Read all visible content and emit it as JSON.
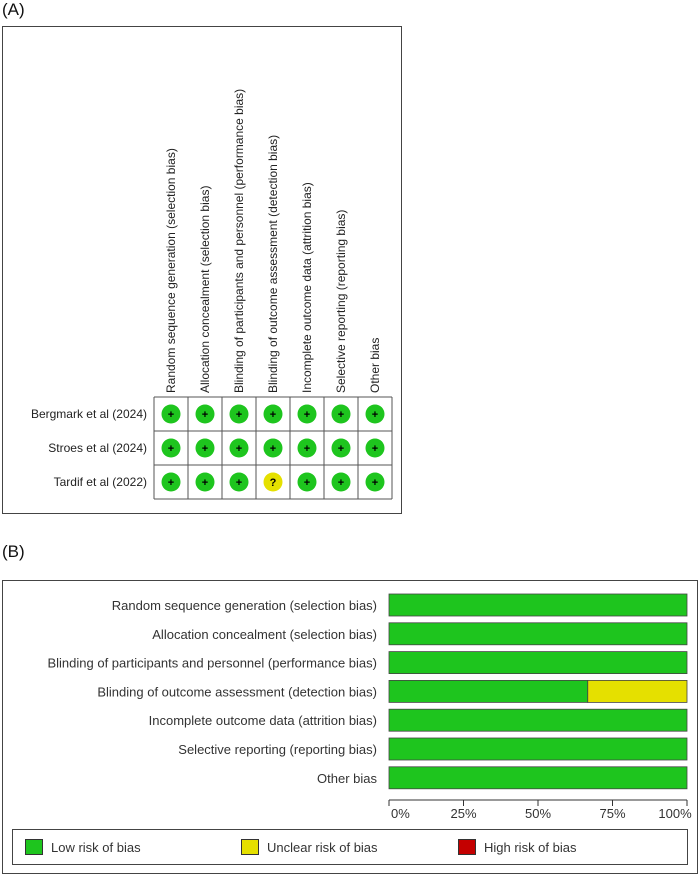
{
  "panels": {
    "a_label": "(A)",
    "b_label": "(B)"
  },
  "colors": {
    "low": "#1ec51e",
    "unclear": "#e5e000",
    "high": "#c40000"
  },
  "chart_data": [
    {
      "type": "table",
      "title": "",
      "domains": [
        "Random sequence generation (selection bias)",
        "Allocation concealment (selection bias)",
        "Blinding of participants and personnel (performance bias)",
        "Blinding of outcome assessment (detection bias)",
        "Incomplete outcome data (attrition bias)",
        "Selective reporting (reporting bias)",
        "Other bias"
      ],
      "studies": [
        {
          "name": "Bergmark et al (2024)",
          "judgements": [
            "+",
            "+",
            "+",
            "+",
            "+",
            "+",
            "+"
          ]
        },
        {
          "name": "Stroes et al (2024)",
          "judgements": [
            "+",
            "+",
            "+",
            "+",
            "+",
            "+",
            "+"
          ]
        },
        {
          "name": "Tardif et al (2022)",
          "judgements": [
            "+",
            "+",
            "+",
            "?",
            "+",
            "+",
            "+"
          ]
        }
      ]
    },
    {
      "type": "bar",
      "title": "",
      "categories": [
        "Random sequence generation (selection bias)",
        "Allocation concealment (selection bias)",
        "Blinding of participants and personnel (performance bias)",
        "Blinding of outcome assessment (detection bias)",
        "Incomplete outcome data (attrition bias)",
        "Selective reporting (reporting bias)",
        "Other bias"
      ],
      "series": [
        {
          "name": "Low risk of bias",
          "values": [
            100,
            100,
            100,
            66.7,
            100,
            100,
            100
          ]
        },
        {
          "name": "Unclear risk of bias",
          "values": [
            0,
            0,
            0,
            33.3,
            0,
            0,
            0
          ]
        },
        {
          "name": "High risk of bias",
          "values": [
            0,
            0,
            0,
            0,
            0,
            0,
            0
          ]
        }
      ],
      "xlim": [
        0,
        100
      ],
      "ticks": [
        "0%",
        "25%",
        "50%",
        "75%",
        "100%"
      ],
      "xlabel": "",
      "ylabel": "",
      "stacked": true,
      "orientation": "horizontal",
      "legend_placement": "bottom"
    }
  ]
}
